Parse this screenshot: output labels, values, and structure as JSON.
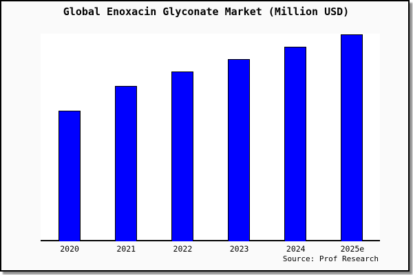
{
  "title": "Global Enoxacin Glyconate Market (Million USD)",
  "source_note": "Source: Prof Research",
  "colors": {
    "bar_fill": "#0000ff",
    "bar_border": "#000000",
    "panel_background": "#fafafa",
    "plot_background": "#ffffff",
    "axis": "#000000",
    "panel_border": "#000000",
    "shadow": "#8f8f8f",
    "text": "#000000"
  },
  "chart_data": {
    "type": "bar",
    "title": "Global Enoxacin Glyconate Market (Million USD)",
    "categories": [
      "2020",
      "2021",
      "2022",
      "2023",
      "2024",
      "2025e"
    ],
    "values": [
      63,
      75,
      82,
      88,
      94,
      100
    ],
    "values_note": "No y-axis scale is shown; values are relative bar heights estimated from pixels, normalized so 2025e = 100.",
    "xlabel": "",
    "ylabel": "",
    "ylim": [
      0,
      101
    ],
    "grid": false,
    "legend": false,
    "annotations": [
      "Source: Prof Research"
    ]
  }
}
